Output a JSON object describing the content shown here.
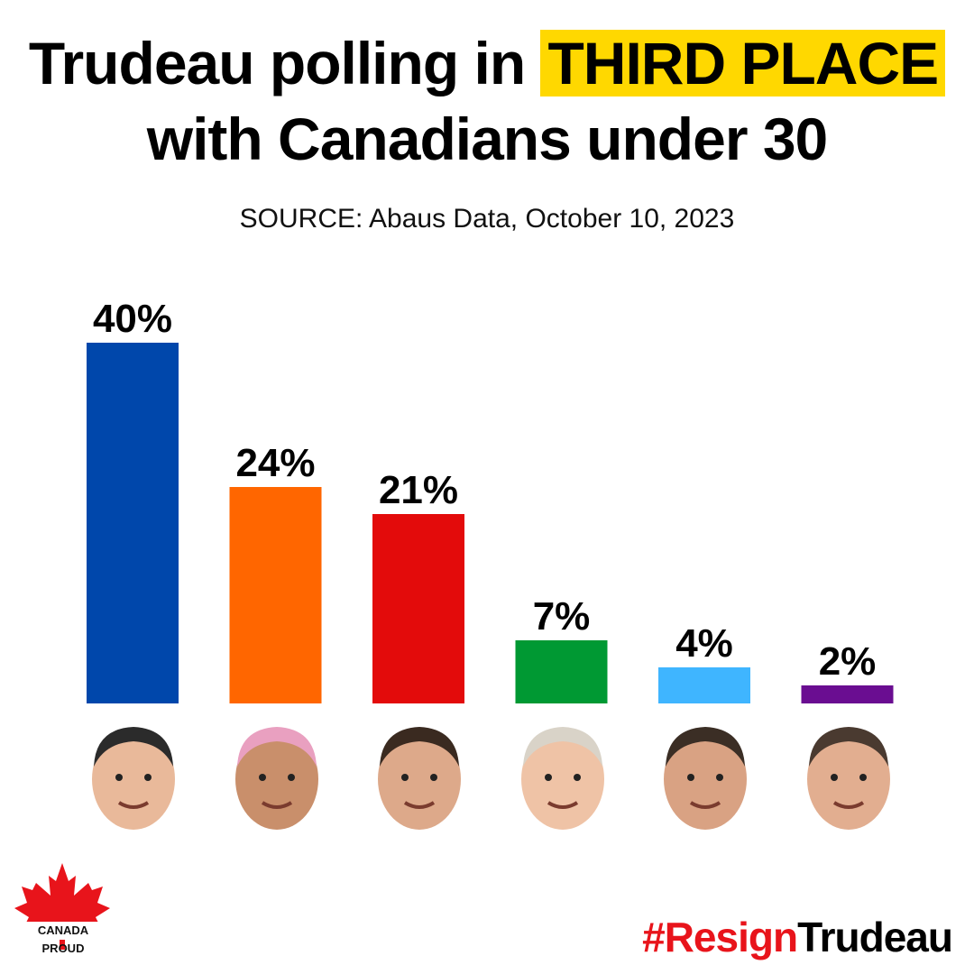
{
  "title": {
    "line1_prefix": "Trudeau polling in ",
    "line1_highlight": "THIRD PLACE",
    "line2": "with Canadians under 30"
  },
  "source": "SOURCE: Abaus Data, October 10, 2023",
  "colors": {
    "highlight": "#FFD800",
    "hashtag_red": "#E8141B"
  },
  "chart_data": {
    "type": "bar",
    "categories": [
      "",
      "",
      "",
      "",
      "",
      ""
    ],
    "values": [
      40,
      24,
      21,
      7,
      4,
      2
    ],
    "value_labels": [
      "40%",
      "24%",
      "21%",
      "7%",
      "4%",
      "2%"
    ],
    "colors": [
      "#0047AB",
      "#FF6600",
      "#E30B0B",
      "#009933",
      "#3FB5FF",
      "#6A0D91"
    ],
    "ylim": [
      0,
      40
    ],
    "grid": false,
    "legend": "none",
    "xlabel": "",
    "ylabel": ""
  },
  "portraits": [
    {
      "icon": "portrait-icon"
    },
    {
      "icon": "portrait-icon"
    },
    {
      "icon": "portrait-icon"
    },
    {
      "icon": "portrait-icon"
    },
    {
      "icon": "portrait-icon"
    },
    {
      "icon": "portrait-icon"
    }
  ],
  "logo": {
    "text": "CANADA PROUD",
    "icon": "maple-leaf-icon",
    "color": "#E8141B"
  },
  "hashtag": {
    "red_part": "#Resign",
    "black_part": "Trudeau"
  }
}
